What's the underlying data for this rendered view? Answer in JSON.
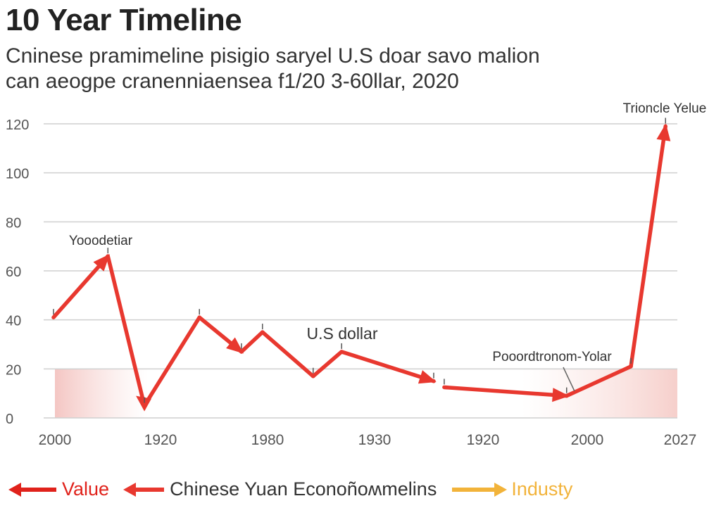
{
  "title": "10 Year Timeline",
  "subtitle_line1": "Cninese pramimeline pisigio saryel U.S doar savo malion",
  "subtitle_line2": "can aeogpe cranenniaensea f1/20 3-60llar, 2020",
  "chart_data": {
    "type": "line",
    "title": "10 Year Timeline",
    "y_ticks": [
      0,
      20,
      40,
      60,
      80,
      100,
      120
    ],
    "ylim": [
      0,
      120
    ],
    "grid": true,
    "x_tick_labels": [
      "2000",
      "1920",
      "1980",
      "1930",
      "1920",
      "2000",
      "2027"
    ],
    "highlight_band": {
      "from": 0,
      "to": 20
    },
    "series": [
      {
        "name": "Value",
        "color": "#e8382f",
        "points": [
          {
            "x": 0.0,
            "y": 41
          },
          {
            "x": 0.088,
            "y": 66
          },
          {
            "x": 0.147,
            "y": 5
          },
          {
            "x": 0.236,
            "y": 41
          },
          {
            "x": 0.304,
            "y": 27
          },
          {
            "x": 0.338,
            "y": 35
          },
          {
            "x": 0.42,
            "y": 17
          },
          {
            "x": 0.466,
            "y": 27
          },
          {
            "x": 0.615,
            "y": 15
          },
          {
            "x": 0.632,
            "y": 12.5
          },
          {
            "x": 0.83,
            "y": 9
          },
          {
            "x": 0.934,
            "y": 21
          },
          {
            "x": 0.99,
            "y": 119
          }
        ]
      }
    ],
    "annotations": [
      {
        "text": "Yooodetiar",
        "x": 0.088,
        "y": 66
      },
      {
        "text": "U.S dollar",
        "x": 0.466,
        "y": 27
      },
      {
        "text": "Pooordtronom-Yolar",
        "x": 0.83,
        "y": 9
      },
      {
        "text": "Trioncle Yelue",
        "x": 0.99,
        "y": 119
      }
    ]
  },
  "legend": [
    {
      "label": "Value",
      "color": "#e0221b",
      "text_color": "#e0221b",
      "direction": "left"
    },
    {
      "label": "Chinese Yuan Econoñoʍmelins",
      "color": "#e8382f",
      "text_color": "#333333",
      "direction": "left"
    },
    {
      "label": "Industy",
      "color": "#f2b33a",
      "text_color": "#f2b33a",
      "direction": "right"
    }
  ]
}
